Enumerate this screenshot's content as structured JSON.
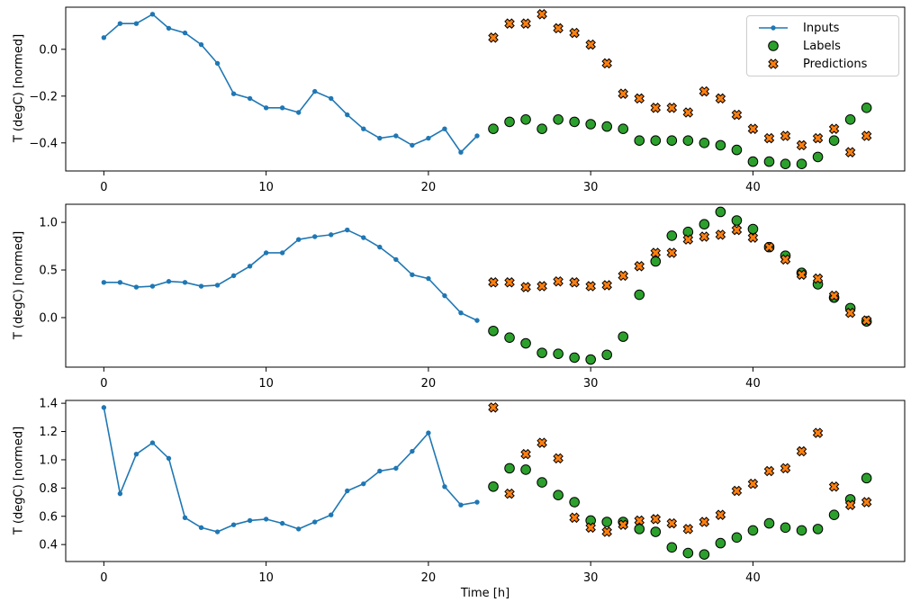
{
  "figure": {
    "background": "#ffffff",
    "axes_count": 3
  },
  "chart_data": {
    "type": "line+scatter",
    "title": "",
    "xlabel": "Time [h]",
    "ylabel": "T (degC) [normed]",
    "grid": false,
    "legend": {
      "position": "upper-right of subplot 1",
      "entries": [
        "Inputs",
        "Labels",
        "Predictions"
      ]
    },
    "colors": {
      "inputs": "#1f77b4",
      "labels": "#2ca02c",
      "predictions": "#ff7f0e",
      "marker_edge": "#000000"
    },
    "xlim": [
      -2.35,
      49.35
    ],
    "xticks": [
      {
        "v": 0,
        "label": "0"
      },
      {
        "v": 10,
        "label": "10"
      },
      {
        "v": 20,
        "label": "20"
      },
      {
        "v": 30,
        "label": "30"
      },
      {
        "v": 40,
        "label": "40"
      }
    ],
    "x_inputs": [
      0,
      1,
      2,
      3,
      4,
      5,
      6,
      7,
      8,
      9,
      10,
      11,
      12,
      13,
      14,
      15,
      16,
      17,
      18,
      19,
      20,
      21,
      22,
      23
    ],
    "x_labels": [
      24,
      25,
      26,
      27,
      28,
      29,
      30,
      31,
      32,
      33,
      34,
      35,
      36,
      37,
      38,
      39,
      40,
      41,
      42,
      43,
      44,
      45,
      46,
      47
    ],
    "subplots": [
      {
        "name": "subplot-1",
        "ylim": [
          -0.52,
          0.18
        ],
        "yticks": [
          {
            "v": 0.0,
            "label": "0.0"
          },
          {
            "v": -0.2,
            "label": "−0.2"
          },
          {
            "v": -0.4,
            "label": "−0.4"
          }
        ],
        "series": {
          "inputs": [
            0.05,
            0.11,
            0.11,
            0.15,
            0.09,
            0.07,
            0.02,
            -0.06,
            -0.19,
            -0.21,
            -0.25,
            -0.25,
            -0.27,
            -0.18,
            -0.21,
            -0.28,
            -0.34,
            -0.38,
            -0.37,
            -0.41,
            -0.38,
            -0.34,
            -0.44,
            -0.37
          ],
          "labels": [
            -0.34,
            -0.31,
            -0.3,
            -0.34,
            -0.3,
            -0.31,
            -0.32,
            -0.33,
            -0.34,
            -0.39,
            -0.39,
            -0.39,
            -0.39,
            -0.4,
            -0.41,
            -0.43,
            -0.48,
            -0.48,
            -0.49,
            -0.49,
            -0.46,
            -0.39,
            -0.3,
            -0.25
          ],
          "predictions": [
            0.05,
            0.11,
            0.11,
            0.15,
            0.09,
            0.07,
            0.02,
            -0.06,
            -0.19,
            -0.21,
            -0.25,
            -0.25,
            -0.27,
            -0.18,
            -0.21,
            -0.28,
            -0.34,
            -0.38,
            -0.37,
            -0.41,
            -0.38,
            -0.34,
            -0.44,
            -0.37
          ]
        }
      },
      {
        "name": "subplot-2",
        "ylim": [
          -0.52,
          1.19
        ],
        "yticks": [
          {
            "v": 1.0,
            "label": "1.0"
          },
          {
            "v": 0.5,
            "label": "0.5"
          },
          {
            "v": 0.0,
            "label": "0.0"
          }
        ],
        "series": {
          "inputs": [
            0.37,
            0.37,
            0.32,
            0.33,
            0.38,
            0.37,
            0.33,
            0.34,
            0.44,
            0.54,
            0.68,
            0.68,
            0.82,
            0.85,
            0.87,
            0.92,
            0.84,
            0.74,
            0.61,
            0.45,
            0.41,
            0.23,
            0.05,
            -0.03
          ],
          "labels": [
            -0.14,
            -0.21,
            -0.27,
            -0.37,
            -0.38,
            -0.42,
            -0.44,
            -0.39,
            -0.2,
            0.24,
            0.59,
            0.86,
            0.9,
            0.98,
            1.11,
            1.02,
            0.93,
            0.74,
            0.65,
            0.47,
            0.35,
            0.21,
            0.1,
            -0.04
          ],
          "predictions": [
            0.37,
            0.37,
            0.32,
            0.33,
            0.38,
            0.37,
            0.33,
            0.34,
            0.44,
            0.54,
            0.68,
            0.68,
            0.82,
            0.85,
            0.87,
            0.92,
            0.84,
            0.74,
            0.61,
            0.45,
            0.41,
            0.23,
            0.05,
            -0.03
          ]
        }
      },
      {
        "name": "subplot-3",
        "ylim": [
          0.28,
          1.42
        ],
        "yticks": [
          {
            "v": 1.4,
            "label": "1.4"
          },
          {
            "v": 1.2,
            "label": "1.2"
          },
          {
            "v": 1.0,
            "label": "1.0"
          },
          {
            "v": 0.8,
            "label": "0.8"
          },
          {
            "v": 0.6,
            "label": "0.6"
          },
          {
            "v": 0.4,
            "label": "0.4"
          }
        ],
        "series": {
          "inputs": [
            1.37,
            0.76,
            1.04,
            1.12,
            1.01,
            0.59,
            0.52,
            0.49,
            0.54,
            0.57,
            0.58,
            0.55,
            0.51,
            0.56,
            0.61,
            0.78,
            0.83,
            0.92,
            0.94,
            1.06,
            1.19,
            0.81,
            0.68,
            0.7
          ],
          "labels": [
            0.81,
            0.94,
            0.93,
            0.84,
            0.75,
            0.7,
            0.57,
            0.56,
            0.56,
            0.51,
            0.49,
            0.38,
            0.34,
            0.33,
            0.41,
            0.45,
            0.5,
            0.55,
            0.52,
            0.5,
            0.51,
            0.61,
            0.72,
            0.87
          ],
          "predictions": [
            1.37,
            0.76,
            1.04,
            1.12,
            1.01,
            0.59,
            0.52,
            0.49,
            0.54,
            0.57,
            0.58,
            0.55,
            0.51,
            0.56,
            0.61,
            0.78,
            0.83,
            0.92,
            0.94,
            1.06,
            1.19,
            0.81,
            0.68,
            0.7
          ]
        }
      }
    ]
  }
}
